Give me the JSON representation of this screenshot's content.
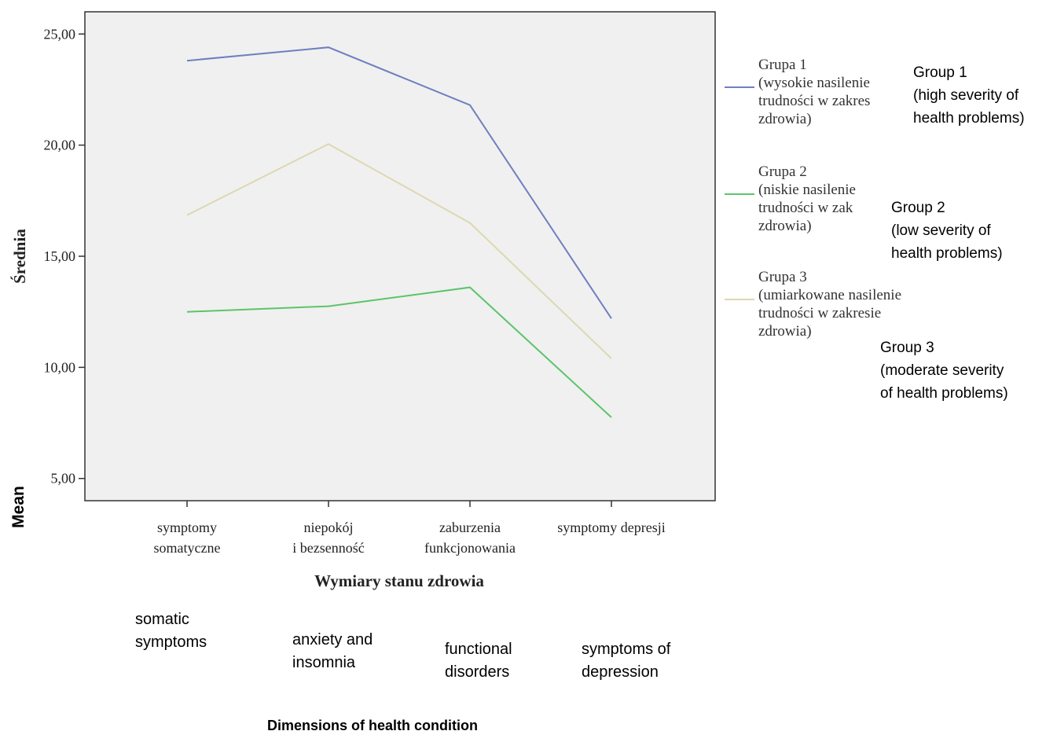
{
  "chart_data": {
    "type": "line",
    "ylabel": "Średnia",
    "ylabel_en": "Mean",
    "xlabel": "Wymiary stanu zdrowia",
    "xlabel_en": "Dimensions of health condition",
    "ylim": [
      4,
      26
    ],
    "yticks": [
      "5,00",
      "10,00",
      "15,00",
      "20,00",
      "25,00"
    ],
    "categories": [
      {
        "pl": [
          "symptomy",
          "somatyczne"
        ],
        "en": [
          "somatic",
          "symptoms"
        ]
      },
      {
        "pl": [
          "niepokój",
          "i bezsenność"
        ],
        "en": [
          "anxiety and",
          "insomnia"
        ]
      },
      {
        "pl": [
          "zaburzenia",
          "funkcjonowania"
        ],
        "en": [
          "functional",
          "disorders"
        ]
      },
      {
        "pl": [
          "symptomy depresji"
        ],
        "en": [
          "symptoms of",
          "depression"
        ]
      }
    ],
    "series": [
      {
        "name": "Grupa 1",
        "legend_pl": [
          "Grupa 1",
          "(wysokie nasilenie",
          "trudności w zakres",
          "zdrowia)"
        ],
        "legend_en": [
          "Group 1",
          "(high severity of",
          "health problems)"
        ],
        "color": "#6f7fc0",
        "values": [
          23.8,
          24.4,
          21.8,
          12.2
        ]
      },
      {
        "name": "Grupa 2",
        "legend_pl": [
          "Grupa 2",
          "(niskie nasilenie",
          "trudności w zak",
          "zdrowia)"
        ],
        "legend_en": [
          "Group 2",
          "(low severity of",
          "health problems)"
        ],
        "color": "#5cc46a",
        "values": [
          12.5,
          12.75,
          13.6,
          7.75
        ]
      },
      {
        "name": "Grupa 3",
        "legend_pl": [
          "Grupa 3",
          "(umiarkowane nasilenie",
          "trudności w zakresie",
          "zdrowia)"
        ],
        "legend_en": [
          "Group 3",
          "(moderate severity",
          "of health problems)"
        ],
        "color": "#ddd8b2",
        "values": [
          16.85,
          20.05,
          16.5,
          10.4
        ]
      }
    ],
    "grid": false,
    "legend_position": "right",
    "plot_background": "#f0f0f0"
  }
}
